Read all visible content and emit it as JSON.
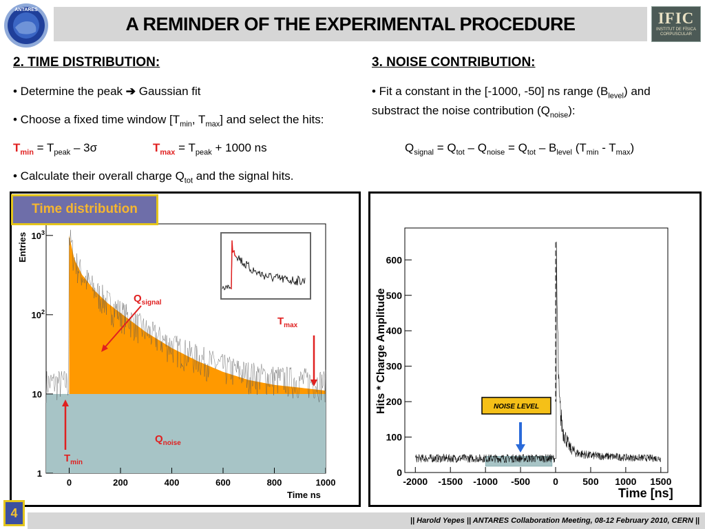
{
  "header": {
    "title": "A REMINDER OF THE EXPERIMENTAL PROCEDURE",
    "left_logo_text": "ANTARES",
    "right_logo_text": "IFIC",
    "right_logo_subtext": "INSTITUT DE FÍSICA CORPUSCULAR"
  },
  "left": {
    "heading": "2.  TIME DISTRIBUTION:",
    "b1_a": "• Determine the peak ",
    "b1_b": " Gaussian fit",
    "b2_a": "• Choose a fixed time window [T",
    "b2_min": "min",
    "b2_mid": ", T",
    "b2_max": "max",
    "b2_end": "] and select the hits:",
    "tmin_T": "T",
    "tmin_sub": "min",
    "tmin_eq": " = T",
    "tmin_peak": "peak",
    "tmin_rest": " – 3σ",
    "tmax_T": "T",
    "tmax_sub": "max",
    "tmax_eq": " = T",
    "tmax_peak": "peak",
    "tmax_rest": " + 1000 ns",
    "b3_a": "• Calculate their overall charge Q",
    "b3_sub": "tot",
    "b3_end": " and the signal hits."
  },
  "right": {
    "heading": "3.  NOISE CONTRIBUTION:",
    "l1_a": "• Fit a constant in the [-1000, -50] ns range (B",
    "l1_sub": "level",
    "l1_end": ") and",
    "l2_a": "substract the noise contribution (Q",
    "l2_sub": "noise",
    "l2_end": "):",
    "f_Q": "Q",
    "f_signal": "signal",
    "f_eq1": " = Q",
    "f_tot1": "tot",
    "f_m1": " – Q",
    "f_noise": "noise",
    "f_eq2": " = Q",
    "f_tot2": "tot",
    "f_m2": " – B",
    "f_level": "level",
    "f_p1": " (T",
    "f_min": "min",
    "f_m3": " - T",
    "f_max": "max",
    "f_p2": ")"
  },
  "time_distribution_label": "Time distribution",
  "noise_level_label": "NOISE LEVEL",
  "colors": {
    "signal_fill": "#ff9900",
    "noise_fill": "#a7c4c6",
    "annotation": "#e02020",
    "arrow_blue": "#2a6ad9",
    "label_box": "#6e6ea9",
    "label_border": "#e4c51c"
  },
  "chart_data": [
    {
      "type": "area",
      "ylabel": "Entries",
      "xlabel": "Time  ns",
      "log_y": true,
      "xlim": [
        -90,
        1000
      ],
      "ylim": [
        1,
        1400
      ],
      "x_ticks": [
        "0",
        "200",
        "400",
        "600",
        "800",
        "1000"
      ],
      "y_ticks": [
        "1",
        "10",
        "10",
        "10"
      ],
      "y_tick_exponents": [
        "",
        "",
        "2",
        "3"
      ],
      "annotations": {
        "signal_Q": "Q",
        "signal_sub": "signal",
        "noise_Q": "Q",
        "noise_sub": "noise",
        "tmax_T": "T",
        "tmax_sub": "max",
        "tmin_T": "T",
        "tmin_sub": "min"
      },
      "noise_level": 10,
      "peak_time": 0,
      "peak_value": 1000,
      "series": [
        {
          "values_x": [
            0,
            20,
            50,
            100,
            150,
            200,
            300,
            400,
            500,
            600,
            700,
            800,
            900,
            1000
          ],
          "values_y": [
            1000,
            500,
            320,
            200,
            140,
            105,
            60,
            38,
            26,
            19,
            15,
            13,
            12,
            11
          ]
        }
      ],
      "legend": "none"
    },
    {
      "type": "scatter",
      "ylabel": "Hits * Charge Amplitude",
      "xlabel": "Time [ns]",
      "xlim": [
        -2150,
        1600
      ],
      "ylim": [
        0,
        690
      ],
      "x_ticks": [
        "-2000",
        "-1500",
        "-1000",
        "-500",
        "0",
        "500",
        "1000",
        "1500"
      ],
      "y_ticks": [
        "0",
        "100",
        "200",
        "300",
        "400",
        "500",
        "600"
      ],
      "noise_level": 40,
      "noise_fit_range": [
        -1000,
        -50
      ],
      "series": [
        {
          "values_x": [
            -2000,
            -1500,
            -1000,
            -500,
            -50,
            0,
            50,
            100,
            200,
            300,
            500,
            800,
            1000,
            1500
          ],
          "values_y": [
            40,
            40,
            40,
            40,
            40,
            650,
            200,
            120,
            70,
            55,
            48,
            45,
            42,
            40
          ]
        }
      ],
      "legend": "none"
    }
  ],
  "footer": {
    "page": "4",
    "text": "|| Harold Yepes  || ANTARES Collaboration Meeting, 08-12 February 2010, CERN ||"
  }
}
